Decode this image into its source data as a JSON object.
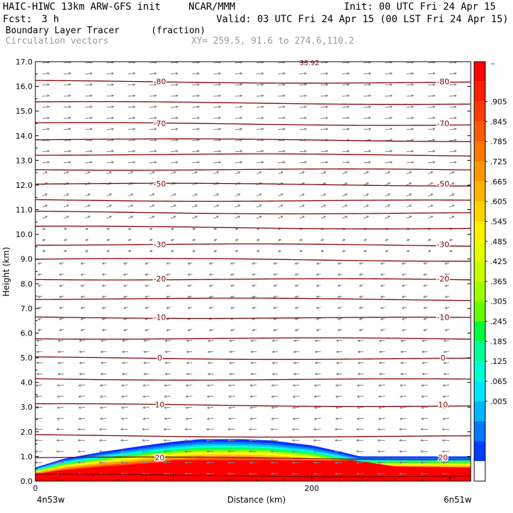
{
  "header": {
    "model": "HAIC-HIWC 13km ARW-GFS init",
    "org": "NCAR/MMM",
    "init": "Init: 00 UTC Fri 24 Apr 15",
    "fcst_label": "Fcst:",
    "fcst_value": "3 h",
    "valid": "Valid: 03 UTC Fri 24 Apr 15 (00 LST Fri 24 Apr 15)",
    "field": "Boundary Layer Tracer",
    "units": "(fraction)",
    "vectors": "Circulation vectors",
    "xy": "XY= 259.5, 91.6 to 274.6,110.2"
  },
  "colorbar": {
    "labels": [
      ".905",
      ".845",
      ".785",
      ".725",
      ".665",
      ".605",
      ".545",
      ".485",
      ".425",
      ".365",
      ".305",
      ".245",
      ".185",
      ".125",
      ".065",
      ".005"
    ],
    "top_label": "–",
    "colors": [
      "#ff0000",
      "#ff1e00",
      "#ff3c00",
      "#ff5a00",
      "#ff7800",
      "#ff9600",
      "#ffb400",
      "#ffd200",
      "#fff000",
      "#e6ff00",
      "#c8ff00",
      "#a0ff00",
      "#64ff00",
      "#00ff3c",
      "#00ff96",
      "#00ffd2",
      "#00e6ff",
      "#00b4ff",
      "#0078ff",
      "#003cff",
      "#ffffff"
    ]
  },
  "chart_data": {
    "type": "cross-section",
    "xlabel": "Distance (km)",
    "ylabel": "Height (km)",
    "xlim": [
      0,
      315
    ],
    "ylim": [
      0,
      17
    ],
    "y_ticks": [
      "0.0",
      "1.0",
      "2.0",
      "3.0",
      "4.0",
      "5.0",
      "6.0",
      "7.0",
      "8.0",
      "9.0",
      "10.0",
      "11.0",
      "12.0",
      "13.0",
      "14.0",
      "15.0",
      "16.0",
      "17.0"
    ],
    "x_ticks": [
      "0",
      "200"
    ],
    "x_end_labels": {
      "left": "4n53w",
      "right": "6n51w"
    },
    "contour_label_max": "33.92",
    "temperature_contours": [
      {
        "label": "20",
        "y": 0.95
      },
      {
        "label": "10",
        "y": 3.1
      },
      {
        "label": "0",
        "y": 5.0
      },
      {
        "label": "-10",
        "y": 6.65
      },
      {
        "label": "-20",
        "y": 8.2
      },
      {
        "label": "-30",
        "y": 9.6
      },
      {
        "label": "-50",
        "y": 12.05
      },
      {
        "label": "-70",
        "y": 14.5
      },
      {
        "label": "-80",
        "y": 16.2
      }
    ],
    "isotherm_lines": [
      0.25,
      1.85,
      4.15,
      5.8,
      7.4,
      9.0,
      10.3,
      10.9,
      11.4,
      12.65,
      13.25,
      13.85,
      15.35
    ],
    "tracer_top_profile": [
      [
        0,
        0.55
      ],
      [
        20,
        0.9
      ],
      [
        50,
        1.2
      ],
      [
        80,
        1.45
      ],
      [
        100,
        1.6
      ],
      [
        120,
        1.7
      ],
      [
        150,
        1.7
      ],
      [
        170,
        1.65
      ],
      [
        200,
        1.45
      ],
      [
        220,
        1.2
      ],
      [
        235,
        1.0
      ],
      [
        260,
        1.0
      ],
      [
        315,
        1.0
      ]
    ]
  }
}
